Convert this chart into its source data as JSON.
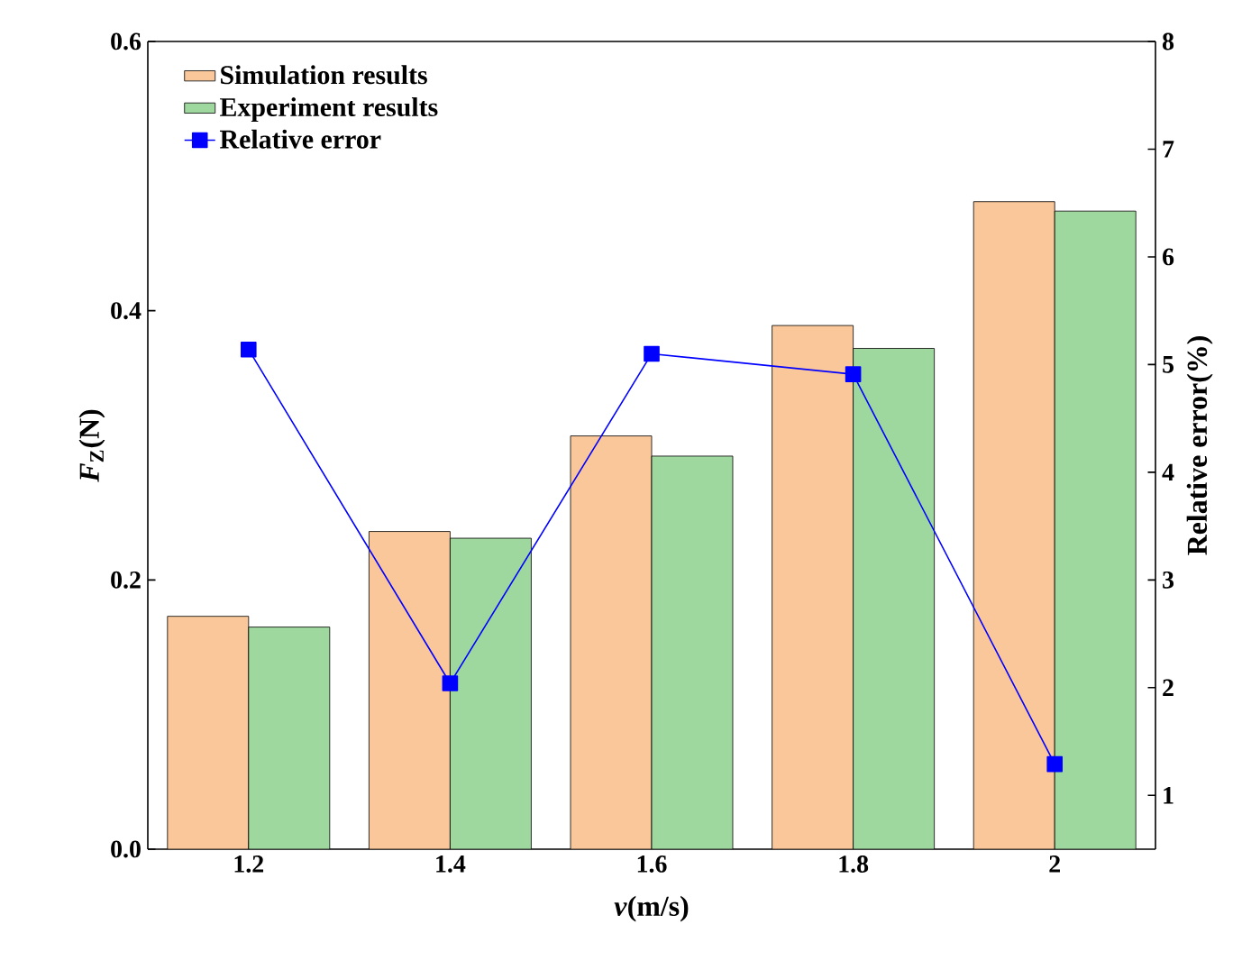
{
  "chart_data": {
    "type": "bar",
    "xlabel": "*v*(m/s)",
    "ylabel": "*F*$_{Z}$(N)",
    "y2label": "Relative error(%)",
    "categories": [
      "1.2",
      "1.4",
      "1.6",
      "1.8",
      "2"
    ],
    "series": [
      {
        "name": "Simulation results",
        "color": "#f9c79a",
        "values": [
          0.173,
          0.236,
          0.307,
          0.389,
          0.481
        ]
      },
      {
        "name": "Experiment results",
        "color": "#9fd89f",
        "values": [
          0.165,
          0.231,
          0.292,
          0.372,
          0.474
        ]
      },
      {
        "name": "Relative error",
        "type": "line",
        "axis": "y2",
        "color": "#0000ff",
        "marker": "square",
        "line_style": "solid",
        "values": [
          5.14,
          2.04,
          5.1,
          4.91,
          1.29
        ]
      }
    ],
    "ylim": [
      0,
      0.6
    ],
    "yticks": [
      {
        "value": 0,
        "label": "0.0"
      },
      0.2,
      0.4,
      0.6
    ],
    "y2lim": [
      0.5,
      8
    ],
    "y2ticks": [
      1,
      2,
      3,
      4,
      5,
      6,
      7,
      8
    ],
    "legend": "top left",
    "grid": false
  }
}
